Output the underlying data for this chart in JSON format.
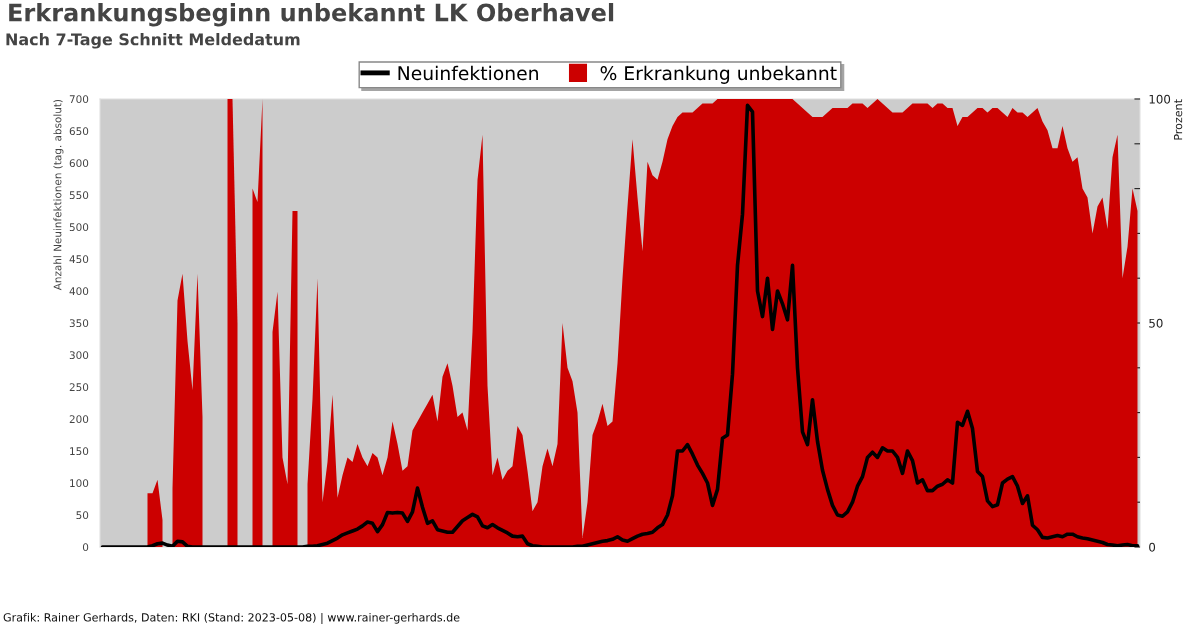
{
  "chart_data": {
    "type": "line",
    "title": "Erkrankungsbeginn unbekannt LK Oberhavel",
    "subtitle": "Nach 7-Tage Schnitt Meldedatum",
    "ylabel": "Anzahl Neuinfektionen (tag. absolut)",
    "y2label": "Prozent",
    "annotations": [
      "Grafik: Rainer Gerhards, Daten: RKI (Stand: 2023-05-08) | www.rainer-gerhards.de"
    ],
    "legend": "top",
    "ylim": [
      0,
      700
    ],
    "yticks": [
      0,
      50,
      100,
      150,
      200,
      250,
      300,
      350,
      400,
      450,
      500,
      550,
      600,
      650,
      700
    ],
    "y2lim": [
      0,
      100
    ],
    "y2ticks": [
      0,
      {
        "value": 10,
        "label": null
      },
      {
        "value": 20,
        "label": null
      },
      {
        "value": 30,
        "label": null
      },
      {
        "value": 40,
        "label": null
      },
      50,
      {
        "value": 60,
        "label": null
      },
      {
        "value": 70,
        "label": null
      },
      {
        "value": 80,
        "label": null
      },
      {
        "value": 90,
        "label": null
      },
      100
    ],
    "categories": [
      null,
      null,
      null,
      null,
      null,
      null,
      null,
      null,
      null,
      null,
      null,
      null,
      null,
      null,
      null,
      null,
      null,
      null,
      null,
      null,
      null,
      null,
      null,
      null,
      null,
      null,
      null,
      null,
      null,
      null,
      null,
      null,
      null,
      null,
      null,
      null,
      null,
      null,
      null,
      null,
      null,
      null,
      null,
      null,
      null,
      null,
      null,
      null,
      null,
      null,
      null,
      null,
      null,
      null,
      null,
      null,
      null,
      null,
      null,
      null,
      null,
      null,
      null,
      null,
      null,
      null,
      null,
      null,
      null,
      null,
      null,
      null,
      null,
      null,
      null,
      null,
      null,
      null,
      null,
      null,
      null,
      null,
      null,
      null,
      null,
      null,
      null,
      null,
      null,
      null,
      null,
      null,
      null,
      null,
      null,
      null,
      null,
      null,
      null,
      null,
      null,
      null,
      null,
      null,
      null,
      null,
      null,
      null,
      null,
      null,
      null,
      null,
      null,
      null,
      null,
      null,
      null,
      null,
      null,
      null,
      null,
      null,
      null,
      null,
      null,
      null,
      null,
      null,
      null,
      null,
      null,
      null,
      null,
      null,
      null,
      null,
      null,
      null,
      null,
      null,
      null,
      null,
      null,
      null,
      null,
      null,
      null,
      null,
      null,
      null,
      null,
      null,
      null,
      null,
      null,
      null,
      null,
      null,
      null,
      null,
      null,
      null,
      null,
      null,
      null,
      null,
      null,
      null,
      null,
      null,
      null,
      null,
      null,
      null,
      null,
      null,
      null,
      null,
      null,
      null,
      null,
      null,
      null,
      null,
      null,
      null,
      null,
      null,
      null,
      null,
      null,
      null,
      null,
      null,
      null,
      null,
      null,
      null,
      null,
      null,
      null,
      null,
      null,
      null,
      null,
      null,
      null,
      null
    ],
    "series": [
      {
        "name": "Neuinfektionen",
        "color": "#000000",
        "values": [
          0,
          0,
          0,
          0,
          0,
          0,
          0,
          0,
          0,
          0,
          2,
          5,
          6,
          3,
          1,
          9,
          8,
          1,
          0,
          0,
          0,
          0,
          0,
          0,
          0,
          0,
          0,
          0,
          0,
          0,
          0,
          0,
          0,
          0,
          0,
          0,
          0,
          0,
          0,
          0,
          0,
          1,
          1,
          2,
          4,
          6,
          10,
          14,
          19,
          22,
          25,
          28,
          33,
          39,
          37,
          24,
          35,
          54,
          53,
          54,
          53,
          40,
          55,
          92,
          62,
          37,
          41,
          27,
          25,
          23,
          23,
          32,
          41,
          46,
          51,
          47,
          33,
          30,
          35,
          30,
          26,
          22,
          17,
          16,
          17,
          5,
          2,
          1,
          0,
          0,
          0,
          0,
          0,
          0,
          0,
          1,
          1,
          3,
          5,
          7,
          9,
          10,
          12,
          16,
          11,
          9,
          13,
          17,
          20,
          21,
          23,
          30,
          35,
          50,
          80,
          150,
          150,
          160,
          145,
          128,
          115,
          100,
          65,
          90,
          170,
          175,
          270,
          440,
          520,
          690,
          680,
          400,
          360,
          420,
          340,
          400,
          380,
          355,
          440,
          280,
          180,
          160,
          230,
          165,
          120,
          90,
          65,
          50,
          48,
          55,
          70,
          95,
          110,
          140,
          148,
          140,
          155,
          150,
          150,
          140,
          115,
          150,
          135,
          100,
          105,
          88,
          88,
          95,
          98,
          105,
          100,
          195,
          190,
          212,
          185,
          118,
          110,
          72,
          63,
          66,
          100,
          106,
          110,
          95,
          68,
          80,
          34,
          27,
          15,
          14,
          16,
          18,
          16,
          20,
          20,
          16,
          14,
          13,
          11,
          9,
          7,
          4,
          3,
          2,
          3,
          4,
          2,
          2
        ]
      },
      {
        "name": "% Erkrankung unbekannt",
        "type": "area",
        "axis": "y2",
        "color": "#cc0000",
        "values": [
          null,
          null,
          null,
          null,
          null,
          null,
          null,
          null,
          null,
          12,
          12,
          15,
          6,
          null,
          13,
          55,
          61,
          46,
          35,
          61,
          29,
          null,
          null,
          null,
          null,
          100,
          100,
          50,
          null,
          null,
          80,
          77,
          100,
          null,
          48,
          57,
          20,
          14,
          75,
          75,
          null,
          14,
          33,
          60,
          10,
          19,
          34,
          11,
          16,
          20,
          19,
          23,
          20,
          18,
          21,
          20,
          16,
          20,
          28,
          23,
          17,
          18,
          26,
          28,
          30,
          32,
          34,
          28,
          38,
          41,
          36,
          29,
          30,
          26,
          48,
          82,
          92,
          36,
          16,
          20,
          15,
          17,
          18,
          27,
          25,
          17,
          8,
          10,
          18,
          22,
          18,
          23,
          50,
          40,
          37,
          30,
          2,
          10,
          25,
          28,
          32,
          27,
          28,
          41,
          60,
          76,
          91,
          78,
          66,
          86,
          83,
          82,
          86,
          91,
          94,
          96,
          97,
          97,
          97,
          98,
          99,
          99,
          99,
          100,
          100,
          100,
          100,
          100,
          100,
          100,
          100,
          100,
          100,
          100,
          100,
          100,
          100,
          100,
          100,
          99,
          98,
          97,
          96,
          96,
          96,
          97,
          98,
          98,
          98,
          98,
          99,
          99,
          99,
          98,
          99,
          100,
          99,
          98,
          97,
          97,
          97,
          98,
          99,
          99,
          99,
          99,
          98,
          99,
          99,
          98,
          98,
          94,
          96,
          96,
          97,
          98,
          98,
          97,
          98,
          98,
          97,
          96,
          98,
          97,
          97,
          96,
          97,
          98,
          95,
          93,
          89,
          89,
          94,
          89,
          86,
          87,
          80,
          78,
          70,
          76,
          78,
          71,
          87,
          92,
          60,
          67,
          80,
          75
        ]
      }
    ]
  }
}
